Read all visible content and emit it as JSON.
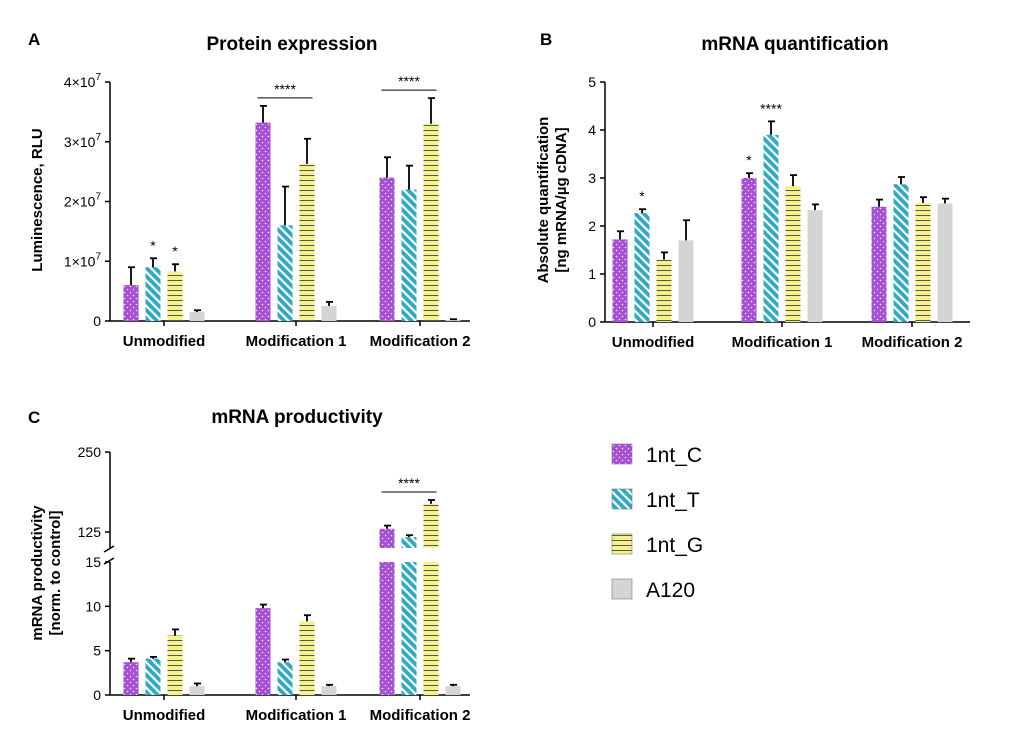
{
  "colors": {
    "1nt_C": "#a64fd4",
    "1nt_T": "#2fa9bf",
    "1nt_G": "#f6f28a",
    "A120": "#d4d4d4"
  },
  "legend": [
    "1nt_C",
    "1nt_T",
    "1nt_G",
    "A120"
  ],
  "panels": {
    "A": {
      "letter": "A"
    },
    "B": {
      "letter": "B"
    },
    "C": {
      "letter": "C"
    }
  },
  "chart_data": [
    {
      "id": "A",
      "type": "bar",
      "title": "Protein expression",
      "ylabel": "Luminescence, RLU",
      "ylim": [
        0,
        40000000
      ],
      "yticks": [
        0,
        10000000,
        20000000,
        30000000,
        40000000
      ],
      "ytick_labels": [
        "0",
        "1×10^7",
        "2×10^7",
        "3×10^7",
        "4×10^7"
      ],
      "categories": [
        "Unmodified",
        "Modification 1",
        "Modification 2"
      ],
      "series": [
        {
          "name": "1nt_C",
          "values": [
            6000000,
            33200000,
            24000000
          ],
          "errors": [
            3000000,
            2800000,
            3400000
          ]
        },
        {
          "name": "1nt_T",
          "values": [
            9000000,
            16000000,
            22000000
          ],
          "errors": [
            1500000,
            6500000,
            4000000
          ]
        },
        {
          "name": "1nt_G",
          "values": [
            8300000,
            26300000,
            33000000
          ],
          "errors": [
            1200000,
            4200000,
            4300000
          ]
        },
        {
          "name": "A120",
          "values": [
            1500000,
            2500000,
            200000
          ],
          "errors": [
            300000,
            700000,
            100000
          ]
        }
      ],
      "annotations": [
        {
          "type": "star",
          "text": "*",
          "category": 0,
          "series": 1
        },
        {
          "type": "star",
          "text": "*",
          "category": 0,
          "series": 2
        },
        {
          "type": "bracket",
          "text": "****",
          "category": 1
        },
        {
          "type": "bracket",
          "text": "****",
          "category": 2
        }
      ]
    },
    {
      "id": "B",
      "type": "bar",
      "title": "mRNA quantification",
      "ylabel": [
        "Absolute quantification",
        "[ng mRNA/µg cDNA]"
      ],
      "ylim": [
        0,
        5
      ],
      "yticks": [
        0,
        1,
        2,
        3,
        4,
        5
      ],
      "ytick_labels": [
        "0",
        "1",
        "2",
        "3",
        "4",
        "5"
      ],
      "categories": [
        "Unmodified",
        "Modification 1",
        "Modification 2"
      ],
      "series": [
        {
          "name": "1nt_C",
          "values": [
            1.72,
            3.0,
            2.4
          ],
          "errors": [
            0.17,
            0.1,
            0.15
          ]
        },
        {
          "name": "1nt_T",
          "values": [
            2.27,
            3.9,
            2.87
          ],
          "errors": [
            0.08,
            0.28,
            0.15
          ]
        },
        {
          "name": "1nt_G",
          "values": [
            1.3,
            2.83,
            2.48
          ],
          "errors": [
            0.15,
            0.23,
            0.12
          ]
        },
        {
          "name": "A120",
          "values": [
            1.7,
            2.33,
            2.47
          ],
          "errors": [
            0.42,
            0.12,
            0.1
          ]
        }
      ],
      "annotations": [
        {
          "type": "star",
          "text": "*",
          "category": 0,
          "series": 1
        },
        {
          "type": "star",
          "text": "*",
          "category": 1,
          "series": 0
        },
        {
          "type": "star",
          "text": "****",
          "category": 1,
          "series": 1
        }
      ]
    },
    {
      "id": "C",
      "type": "bar",
      "title": "mRNA productivity",
      "ylabel": [
        "mRNA productivity",
        "[norm. to control]"
      ],
      "broken_axis": {
        "lower": [
          0,
          15
        ],
        "upper": [
          100,
          250
        ]
      },
      "yticks_lower": [
        0,
        5,
        10,
        15
      ],
      "ytick_labels_lower": [
        "0",
        "5",
        "10",
        "15"
      ],
      "yticks_upper": [
        125,
        250
      ],
      "ytick_labels_upper": [
        "125",
        "250"
      ],
      "categories": [
        "Unmodified",
        "Modification 1",
        "Modification 2"
      ],
      "series": [
        {
          "name": "1nt_C",
          "values": [
            3.7,
            9.8,
            130
          ],
          "errors": [
            0.4,
            0.4,
            5
          ]
        },
        {
          "name": "1nt_T",
          "values": [
            4.1,
            3.7,
            117
          ],
          "errors": [
            0.2,
            0.3,
            3
          ]
        },
        {
          "name": "1nt_G",
          "values": [
            6.7,
            8.3,
            169
          ],
          "errors": [
            0.7,
            0.7,
            6
          ]
        },
        {
          "name": "A120",
          "values": [
            1.0,
            1.0,
            1.0
          ],
          "errors": [
            0.3,
            0.15,
            0.15
          ]
        }
      ],
      "annotations": [
        {
          "type": "bracket",
          "text": "****",
          "category": 2
        }
      ]
    }
  ]
}
